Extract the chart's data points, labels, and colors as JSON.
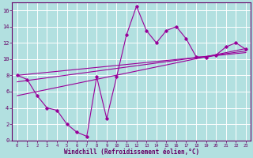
{
  "xlabel": "Windchill (Refroidissement éolien,°C)",
  "bg_color": "#b2e0e0",
  "grid_color": "#ffffff",
  "line_color": "#990099",
  "xlim": [
    -0.5,
    23.5
  ],
  "ylim": [
    0,
    17
  ],
  "xticks": [
    0,
    1,
    2,
    3,
    4,
    5,
    6,
    7,
    8,
    9,
    10,
    11,
    12,
    13,
    14,
    15,
    16,
    17,
    18,
    19,
    20,
    21,
    22,
    23
  ],
  "yticks": [
    0,
    2,
    4,
    6,
    8,
    10,
    12,
    14,
    16
  ],
  "main_x": [
    0,
    1,
    2,
    3,
    4,
    5,
    6,
    7,
    8,
    9,
    10,
    11,
    12,
    13,
    14,
    15,
    16,
    17,
    18,
    19,
    20,
    21,
    22,
    23
  ],
  "main_y": [
    8.0,
    7.5,
    5.5,
    4.0,
    3.7,
    2.0,
    1.0,
    0.5,
    7.8,
    2.7,
    7.8,
    13.0,
    16.5,
    13.5,
    12.0,
    13.5,
    14.0,
    12.5,
    10.3,
    10.2,
    10.5,
    11.5,
    12.0,
    11.2
  ],
  "line2_x": [
    0,
    23
  ],
  "line2_y": [
    8.0,
    10.8
  ],
  "line3_x": [
    0,
    23
  ],
  "line3_y": [
    7.2,
    11.0
  ],
  "line4_x": [
    0,
    23
  ],
  "line4_y": [
    5.5,
    11.3
  ]
}
